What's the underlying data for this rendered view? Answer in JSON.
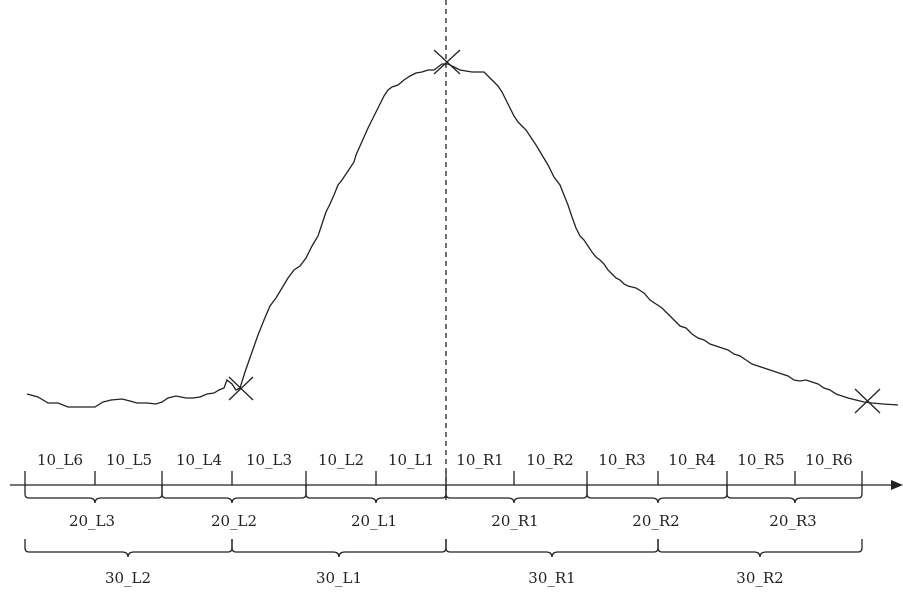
{
  "row10": [
    "10_L6",
    "10_L5",
    "10_L4",
    "10_L3",
    "10_L2",
    "10_L1",
    "10_R1",
    "10_R2",
    "10_R3",
    "10_R4",
    "10_R5",
    "10_R6"
  ],
  "row20": [
    "20_L3",
    "20_L2",
    "20_L1",
    "20_R1",
    "20_R2",
    "20_R3"
  ],
  "row30": [
    "30_L2",
    "30_L1",
    "30_R1",
    "30_R2"
  ]
}
